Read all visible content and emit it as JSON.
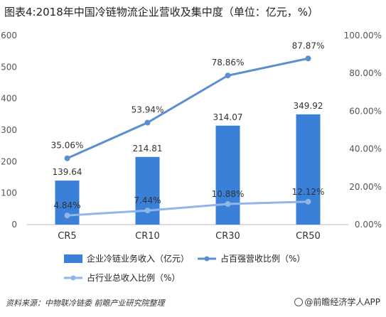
{
  "title": "图表4:2018年中国冷链物流企业营收及集中度（单位：亿元，%）",
  "source": "资料来源：中物联冷链委 前瞻产业研究院整理",
  "brand": "@前瞻经济学人APP",
  "chart_data": {
    "type": "bar",
    "categories": [
      "CR5",
      "CR10",
      "CR30",
      "CR50"
    ],
    "series": [
      {
        "name": "企业冷链业务收入（亿元）",
        "kind": "bar",
        "axis": "left",
        "color": "#3a7fd8",
        "values": [
          139.64,
          214.81,
          314.07,
          349.92
        ],
        "labels": [
          "139.64",
          "214.81",
          "314.07",
          "349.92"
        ]
      },
      {
        "name": "占百强营收比例（%）",
        "kind": "line",
        "axis": "right",
        "color": "#5b8fd0",
        "values": [
          35.06,
          53.94,
          78.86,
          87.87
        ],
        "labels": [
          "35.06%",
          "53.94%",
          "78.86%",
          "87.87%"
        ]
      },
      {
        "name": "占行业总收入比例（%）",
        "kind": "line",
        "axis": "right",
        "color": "#8fb6e6",
        "values": [
          4.84,
          7.44,
          10.88,
          12.12
        ],
        "labels": [
          "4.84%",
          "7.44%",
          "10.88%",
          "12.12%"
        ]
      }
    ],
    "y_left": {
      "min": 0,
      "max": 600,
      "ticks": [
        "0",
        "100",
        "200",
        "300",
        "400",
        "500",
        "600"
      ]
    },
    "y_right": {
      "min": 0,
      "max": 100,
      "ticks": [
        "0.00%",
        "20.00%",
        "40.00%",
        "60.00%",
        "80.00%",
        "100.00%"
      ]
    },
    "grid": false,
    "legend": "bottom"
  }
}
